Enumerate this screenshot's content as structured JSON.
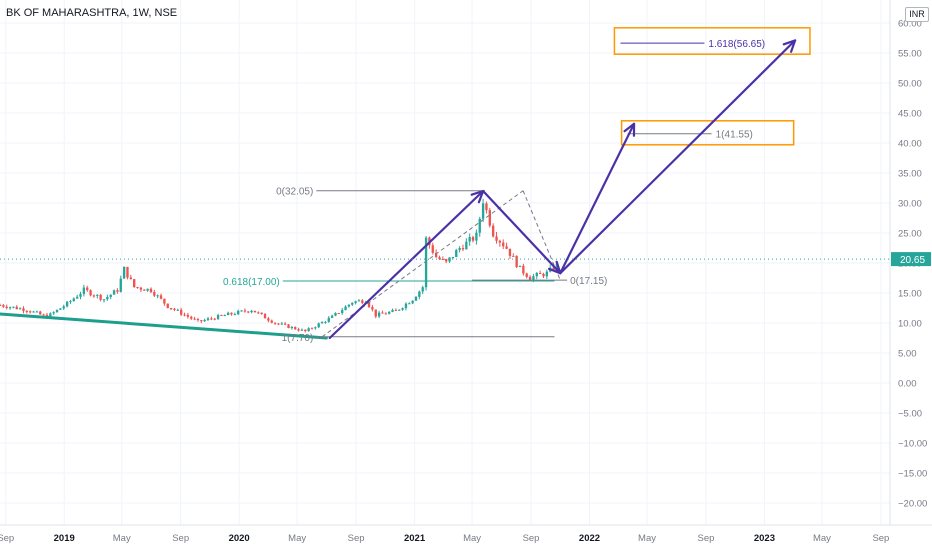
{
  "header": {
    "symbol_title": "BK OF MAHARASHTRA, 1W, NSE",
    "currency": "INR"
  },
  "chart_data": {
    "type": "candlestick",
    "title": "BK OF MAHARASHTRA, 1W, NSE",
    "currency": "INR",
    "last_price": 20.65,
    "last_price_label": "20.65",
    "y_axis": {
      "range": [
        -23,
        62
      ],
      "ticks": [
        60,
        55,
        50,
        45,
        40,
        35,
        30,
        25,
        20,
        15,
        10,
        5,
        0,
        -5,
        -10,
        -15,
        -20
      ],
      "tick_labels": [
        "60.00",
        "55.00",
        "50.00",
        "45.00",
        "40.00",
        "35.00",
        "30.00",
        "25.00",
        "20.00",
        "15.00",
        "10.00",
        "5.00",
        "0.00",
        "−5.00",
        "−10.00",
        "−15.00",
        "−20.00"
      ]
    },
    "x_axis": {
      "range": [
        "2018-08-20",
        "2023-09-20"
      ],
      "ticks": [
        {
          "date": "2018-09-01",
          "label": "Sep",
          "bold": false
        },
        {
          "date": "2019-01-01",
          "label": "2019",
          "bold": true
        },
        {
          "date": "2019-05-01",
          "label": "May",
          "bold": false
        },
        {
          "date": "2019-09-01",
          "label": "Sep",
          "bold": false
        },
        {
          "date": "2020-01-01",
          "label": "2020",
          "bold": true
        },
        {
          "date": "2020-05-01",
          "label": "May",
          "bold": false
        },
        {
          "date": "2020-09-01",
          "label": "Sep",
          "bold": false
        },
        {
          "date": "2021-01-01",
          "label": "2021",
          "bold": true
        },
        {
          "date": "2021-05-01",
          "label": "May",
          "bold": false
        },
        {
          "date": "2021-09-01",
          "label": "Sep",
          "bold": false
        },
        {
          "date": "2022-01-01",
          "label": "2022",
          "bold": true
        },
        {
          "date": "2022-05-01",
          "label": "May",
          "bold": false
        },
        {
          "date": "2022-09-01",
          "label": "Sep",
          "bold": false
        },
        {
          "date": "2023-01-01",
          "label": "2023",
          "bold": true
        },
        {
          "date": "2023-05-01",
          "label": "May",
          "bold": false
        },
        {
          "date": "2023-09-01",
          "label": "Sep",
          "bold": false
        }
      ]
    },
    "grid": true,
    "price_path": [
      [
        "2018-08-20",
        13.0
      ],
      [
        "2018-10-15",
        12.2
      ],
      [
        "2018-11-26",
        11.0
      ],
      [
        "2019-01-07",
        13.2
      ],
      [
        "2019-02-11",
        15.5
      ],
      [
        "2019-03-25",
        14.0
      ],
      [
        "2019-04-22",
        15.5
      ],
      [
        "2019-05-06",
        19.0
      ],
      [
        "2019-05-27",
        16.0
      ],
      [
        "2019-07-01",
        15.5
      ],
      [
        "2019-08-05",
        12.8
      ],
      [
        "2019-10-07",
        10.2
      ],
      [
        "2019-12-02",
        11.3
      ],
      [
        "2020-01-27",
        12.2
      ],
      [
        "2020-03-16",
        10.0
      ],
      [
        "2020-05-18",
        8.6
      ],
      [
        "2020-07-13",
        11.0
      ],
      [
        "2020-08-24",
        13.5
      ],
      [
        "2020-09-21",
        13.8
      ],
      [
        "2020-10-12",
        11.3
      ],
      [
        "2020-11-23",
        12.0
      ],
      [
        "2020-12-28",
        14.0
      ],
      [
        "2021-01-18",
        16.0
      ],
      [
        "2021-01-25",
        24.0
      ],
      [
        "2021-02-15",
        21.0
      ],
      [
        "2021-03-08",
        20.0
      ],
      [
        "2021-04-05",
        22.5
      ],
      [
        "2021-05-10",
        24.5
      ],
      [
        "2021-05-24",
        30.5
      ],
      [
        "2021-06-14",
        25.0
      ],
      [
        "2021-07-12",
        22.5
      ],
      [
        "2021-08-09",
        19.0
      ],
      [
        "2021-08-30",
        17.6
      ],
      [
        "2021-10-04",
        18.3
      ],
      [
        "2021-10-25",
        19.6
      ]
    ],
    "annotations": {
      "fib_extension": {
        "point_a": {
          "date": "2020-06-22",
          "price": 7.7
        },
        "point_b": {
          "date": "2021-05-24",
          "price": 32.05
        },
        "point_c": {
          "date": "2021-11-01",
          "price": 17.15
        },
        "levels": [
          {
            "label": "1(41.55)",
            "price": 41.55
          },
          {
            "label": "1.618(56.65)",
            "price": 56.65
          }
        ],
        "end_date": "2021-10-20"
      },
      "fib_retracement": {
        "label": "0.618(17.00)",
        "price": 17.0,
        "start_date": "2020-04-01",
        "end_date": "2021-10-20"
      },
      "retracement_labels": [
        {
          "label": "0(32.05)",
          "price": 32.05,
          "start_date": "2020-06-10",
          "end_date": "2021-05-28"
        },
        {
          "label": "1(7.70)",
          "price": 7.7,
          "start_date": "2020-06-10",
          "end_date": "2021-10-20"
        },
        {
          "label": "0(17.15)",
          "price": 17.15,
          "start_date": "2021-10-15",
          "end_date": null
        }
      ],
      "target_boxes": [
        {
          "name": "target-box-1",
          "date_from": "2022-03-09",
          "date_to": "2023-03-03",
          "price_low": 39.7,
          "price_high": 43.7
        },
        {
          "name": "target-box-2",
          "date_from": "2022-02-22",
          "date_to": "2023-04-06",
          "price_low": 54.8,
          "price_high": 59.2
        }
      ],
      "trendline": {
        "from": {
          "date": "2018-08-20",
          "price": 11.5
        },
        "to": {
          "date": "2020-07-01",
          "price": 7.5
        }
      },
      "projection_arrows": [
        [
          {
            "date": "2020-07-08",
            "price": 7.5
          },
          {
            "date": "2021-05-24",
            "price": 32.0
          }
        ],
        [
          {
            "date": "2021-05-24",
            "price": 32.0
          },
          {
            "date": "2021-11-01",
            "price": 18.3
          }
        ],
        [
          {
            "date": "2021-11-01",
            "price": 18.3
          },
          {
            "date": "2022-04-04",
            "price": 43.2
          }
        ],
        [
          {
            "date": "2021-11-01",
            "price": 18.3
          },
          {
            "date": "2023-03-06",
            "price": 57.1
          }
        ]
      ]
    },
    "colors": {
      "up": "#26a69a",
      "down": "#ef5350",
      "arrow": "#4b31a8",
      "box": "#ff9800",
      "trendline": "#1e9e8c",
      "fib": "#787b86",
      "fib_618": "#26a69a",
      "last_price": "#26a69a"
    }
  }
}
